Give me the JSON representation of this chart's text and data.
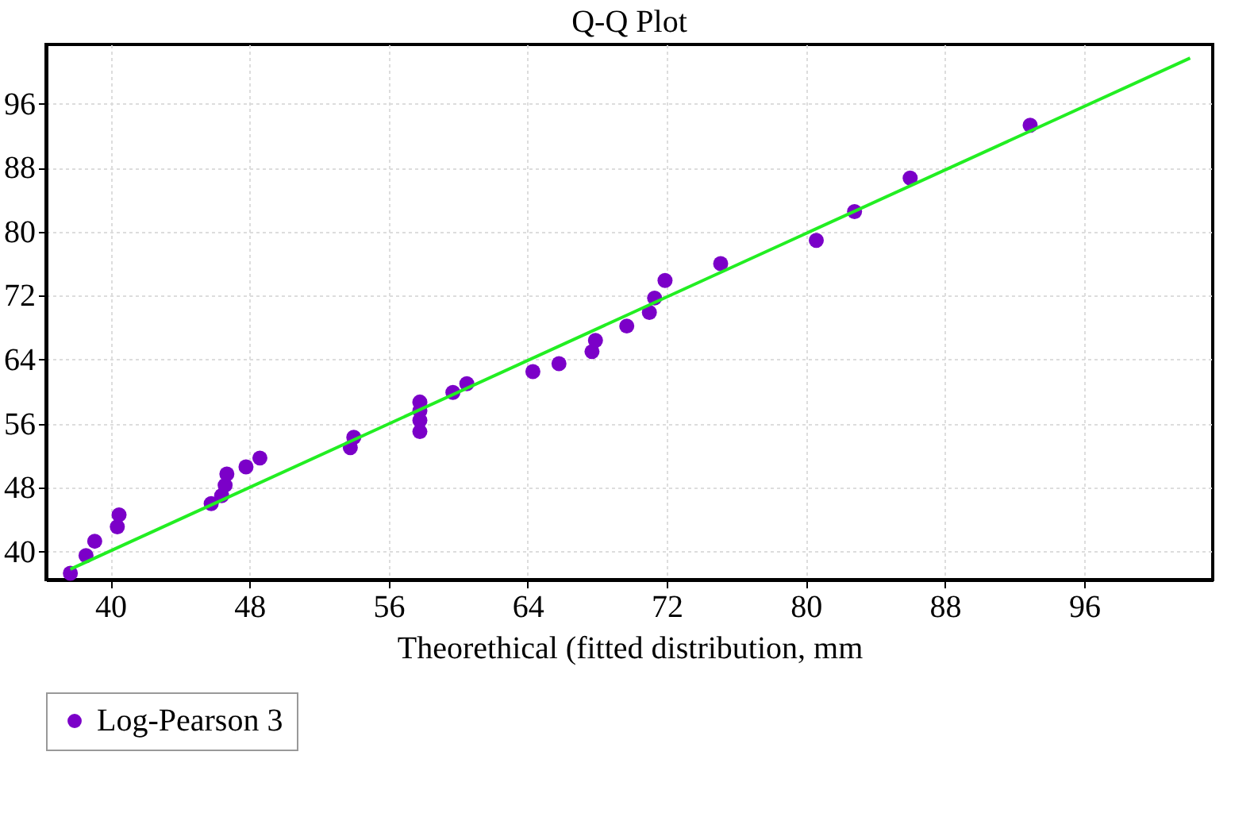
{
  "chart_data": {
    "type": "scatter",
    "title": "Q-Q Plot",
    "xlabel": "Theorethical (fitted distribution, mm",
    "xlim": [
      36.3,
      103.4
    ],
    "ylim": [
      36.5,
      103.4
    ],
    "xticks": [
      40,
      48,
      56,
      64,
      72,
      80,
      88,
      96
    ],
    "yticks": [
      40,
      48,
      56,
      64,
      72,
      80,
      88,
      96
    ],
    "grid": true,
    "legend": "bottom",
    "marker": "circle",
    "series": [
      {
        "name": "Log-Pearson 3",
        "color": "#7b00c8",
        "x": [
          37.7,
          38.6,
          39.1,
          40.4,
          40.5,
          45.8,
          46.4,
          46.6,
          46.7,
          47.8,
          48.6,
          53.8,
          54.0,
          57.8,
          57.8,
          57.8,
          57.8,
          59.7,
          60.5,
          64.3,
          65.8,
          67.7,
          67.9,
          69.7,
          71.0,
          71.3,
          71.9,
          75.1,
          80.6,
          82.8,
          86.0,
          92.9
        ],
        "values": [
          37.3,
          39.5,
          41.3,
          43.1,
          44.6,
          46.0,
          47.0,
          48.3,
          49.7,
          50.6,
          51.7,
          53.0,
          54.3,
          55.0,
          56.4,
          57.6,
          58.7,
          59.9,
          61.0,
          62.5,
          63.5,
          65.0,
          66.4,
          68.2,
          69.9,
          71.7,
          73.9,
          76.0,
          78.9,
          82.5,
          86.7,
          93.3
        ]
      },
      {
        "type": "line",
        "color": "#22ee22",
        "line_style": "solid",
        "marker": "none",
        "x": [
          37.7,
          102.1
        ],
        "values": [
          37.8,
          101.7
        ]
      }
    ]
  }
}
